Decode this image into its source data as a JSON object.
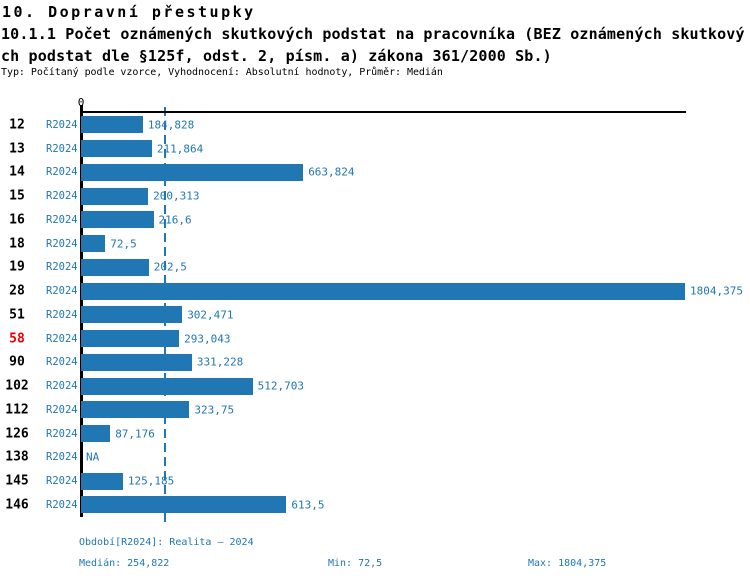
{
  "header": {
    "title": "10. Dopravní přestupky",
    "subtitle_line1": "10.1.1 Počet oznámených skutkových podstat na pracovníka (BEZ oznámených skutkový",
    "subtitle_line2": "ch podstat dle §125f, odst. 2, písm. a) zákona 361/2000 Sb.)",
    "meta": "Typ: Počítaný podle vzorce, Vyhodnocení: Absolutní hodnoty, Průměr: Medián"
  },
  "chart_data": {
    "type": "bar",
    "orientation": "horizontal",
    "title": "10.1.1 Počet oznámených skutkových podstat na pracovníka (BEZ oznámených skutkových podstat dle §125f, odst. 2, písm. a) zákona 361/2000 Sb.)",
    "categories": [
      "12",
      "13",
      "14",
      "15",
      "16",
      "18",
      "19",
      "28",
      "51",
      "58",
      "90",
      "102",
      "112",
      "126",
      "138",
      "145",
      "146"
    ],
    "series": [
      {
        "name": "R2024",
        "values": [
          184.828,
          211.864,
          663.824,
          200.313,
          216.6,
          72.5,
          202.5,
          1804.375,
          302.471,
          293.043,
          331.228,
          512.703,
          323.75,
          87.176,
          null,
          125.185,
          613.5
        ]
      }
    ],
    "value_labels": [
      "184,828",
      "211,864",
      "663,824",
      "200,313",
      "216,6",
      "72,5",
      "202,5",
      "1804,375",
      "302,471",
      "293,043",
      "331,228",
      "512,703",
      "323,75",
      "87,176",
      "NA",
      "125,185",
      "613,5"
    ],
    "row_series_label": "R2024",
    "highlighted_category": "58",
    "xlim": [
      0,
      1804.375
    ],
    "x_tick_labels": [
      "0"
    ],
    "median_value": 254.822,
    "grid": false,
    "legend": "none",
    "bar_color": "#2077b4",
    "label_color": "#2077b4",
    "highlight_color": "#ee0000",
    "na_text": "NA"
  },
  "footer": {
    "period": "Období[R2024]: Realita – 2024",
    "median": "Medián: 254,822",
    "min": "Min: 72,5",
    "max": "Max: 1804,375"
  }
}
